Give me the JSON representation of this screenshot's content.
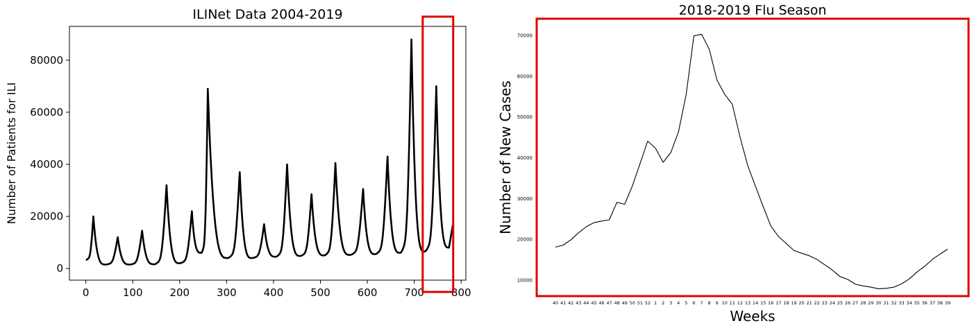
{
  "chart_data": [
    {
      "type": "line",
      "title": "ILINet Data 2004-2019",
      "xlabel": "",
      "ylabel": "Number of Patients for ILI",
      "xlim": [
        -35,
        810
      ],
      "ylim": [
        -4500,
        93000
      ],
      "x_ticks": [
        "0",
        "100",
        "200",
        "300",
        "400",
        "500",
        "600",
        "700",
        "800"
      ],
      "y_ticks": [
        "0",
        "20000",
        "40000",
        "60000",
        "80000"
      ],
      "line_color": "#000000",
      "highlight": {
        "x_range": [
          718,
          783
        ],
        "color": "#e00000"
      },
      "peaks": [
        {
          "x": 16,
          "y": 20000
        },
        {
          "x": 68,
          "y": 12000
        },
        {
          "x": 120,
          "y": 14500
        },
        {
          "x": 172,
          "y": 32000
        },
        {
          "x": 226,
          "y": 22000
        },
        {
          "x": 260,
          "y": 69000
        },
        {
          "x": 328,
          "y": 37000
        },
        {
          "x": 380,
          "y": 17000
        },
        {
          "x": 429,
          "y": 40000
        },
        {
          "x": 481,
          "y": 28500
        },
        {
          "x": 532,
          "y": 40500
        },
        {
          "x": 591,
          "y": 30500
        },
        {
          "x": 643,
          "y": 43000
        },
        {
          "x": 694,
          "y": 88000
        },
        {
          "x": 747,
          "y": 70000
        }
      ],
      "troughs": [
        {
          "x": 0,
          "y": 3300
        },
        {
          "x": 42,
          "y": 1500
        },
        {
          "x": 94,
          "y": 1500
        },
        {
          "x": 146,
          "y": 1600
        },
        {
          "x": 200,
          "y": 2000
        },
        {
          "x": 246,
          "y": 6000
        },
        {
          "x": 302,
          "y": 4000
        },
        {
          "x": 354,
          "y": 4000
        },
        {
          "x": 405,
          "y": 4500
        },
        {
          "x": 457,
          "y": 4800
        },
        {
          "x": 508,
          "y": 5000
        },
        {
          "x": 563,
          "y": 5200
        },
        {
          "x": 617,
          "y": 5500
        },
        {
          "x": 670,
          "y": 6000
        },
        {
          "x": 722,
          "y": 6500
        },
        {
          "x": 774,
          "y": 8000
        },
        {
          "x": 783,
          "y": 17500
        }
      ]
    },
    {
      "type": "line",
      "title": "2018-2019 Flu Season",
      "xlabel": "Weeks",
      "ylabel": "Number of New Cases",
      "ylim": [
        6000,
        74000
      ],
      "y_ticks": [
        "10000",
        "20000",
        "30000",
        "40000",
        "50000",
        "60000",
        "70000"
      ],
      "categories": [
        "40",
        "41",
        "42",
        "43",
        "44",
        "45",
        "46",
        "47",
        "48",
        "49",
        "50",
        "51",
        "52",
        "1",
        "2",
        "3",
        "4",
        "5",
        "6",
        "7",
        "8",
        "9",
        "10",
        "11",
        "12",
        "13",
        "14",
        "15",
        "16",
        "17",
        "18",
        "19",
        "20",
        "21",
        "22",
        "23",
        "24",
        "25",
        "26",
        "27",
        "28",
        "29",
        "30",
        "31",
        "32",
        "33",
        "34",
        "35",
        "36",
        "37",
        "38",
        "39"
      ],
      "values": [
        18000,
        18500,
        19800,
        21500,
        23000,
        24000,
        24400,
        24700,
        29000,
        28500,
        33000,
        38500,
        44000,
        42300,
        38800,
        41200,
        46300,
        55400,
        69800,
        70200,
        66500,
        59000,
        55500,
        53000,
        45000,
        38000,
        33000,
        28000,
        23200,
        20600,
        18900,
        17200,
        16500,
        15900,
        15000,
        13700,
        12400,
        10800,
        10100,
        8900,
        8500,
        8200,
        7800,
        7900,
        8200,
        9000,
        10200,
        11900,
        13300,
        15000,
        16300,
        17500
      ],
      "line_color": "#000000",
      "border_color": "#e00000"
    }
  ]
}
